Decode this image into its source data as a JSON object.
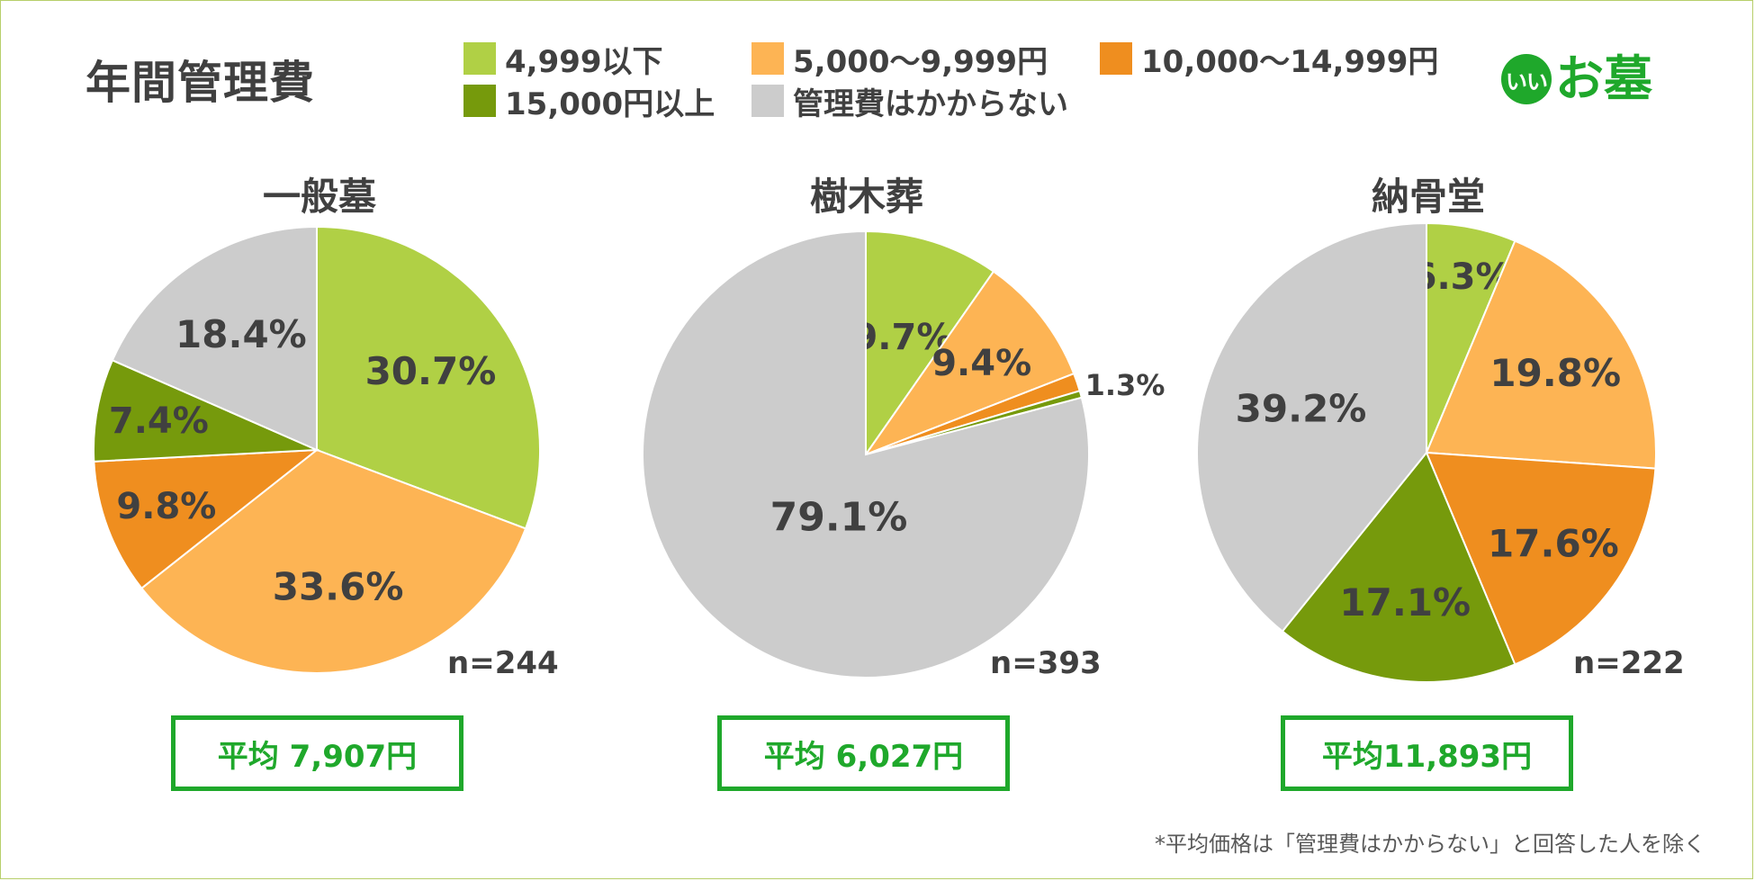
{
  "title": "年間管理費",
  "logo": {
    "circle_text": "いい",
    "text": "お墓",
    "color": "#1fa82b"
  },
  "legend": [
    {
      "label": "4,999以下",
      "color": "#b0d045"
    },
    {
      "label": "5,000〜9,999円",
      "color": "#fdb454"
    },
    {
      "label": "10,000〜14,999円",
      "color": "#ef8e1f"
    },
    {
      "label": "15,000円以上",
      "color": "#769a0c"
    },
    {
      "label": "管理費はかからない",
      "color": "#cccccc"
    }
  ],
  "chart_data": [
    {
      "type": "pie",
      "title": "一般墓",
      "n_label": "n=244",
      "average_label": "平均 7,907円",
      "categories": [
        "4,999以下",
        "5,000〜9,999円",
        "10,000〜14,999円",
        "15,000円以上",
        "管理費はかからない"
      ],
      "values": [
        30.7,
        33.6,
        9.8,
        7.4,
        18.4
      ],
      "labels": [
        "30.7%",
        "33.6%",
        "9.8%",
        "7.4%",
        "18.4%"
      ]
    },
    {
      "type": "pie",
      "title": "樹木葬",
      "n_label": "n=393",
      "average_label": "平均 6,027円",
      "categories": [
        "4,999以下",
        "5,000〜9,999円",
        "10,000〜14,999円",
        "15,000円以上",
        "管理費はかからない"
      ],
      "values": [
        9.7,
        9.4,
        1.3,
        0.5,
        79.1
      ],
      "labels": [
        "9.7%",
        "9.4%",
        "1.3%",
        "0.5%",
        "79.1%"
      ]
    },
    {
      "type": "pie",
      "title": "納骨堂",
      "n_label": "n=222",
      "average_label": "平均11,893円",
      "categories": [
        "4,999以下",
        "5,000〜9,999円",
        "10,000〜14,999円",
        "15,000円以上",
        "管理費はかからない"
      ],
      "values": [
        6.3,
        19.8,
        17.6,
        17.1,
        39.2
      ],
      "labels": [
        "6.3%",
        "19.8%",
        "17.6%",
        "17.1%",
        "39.2%"
      ]
    }
  ],
  "footnote": "*平均価格は「管理費はかからない」と回答した人を除く"
}
